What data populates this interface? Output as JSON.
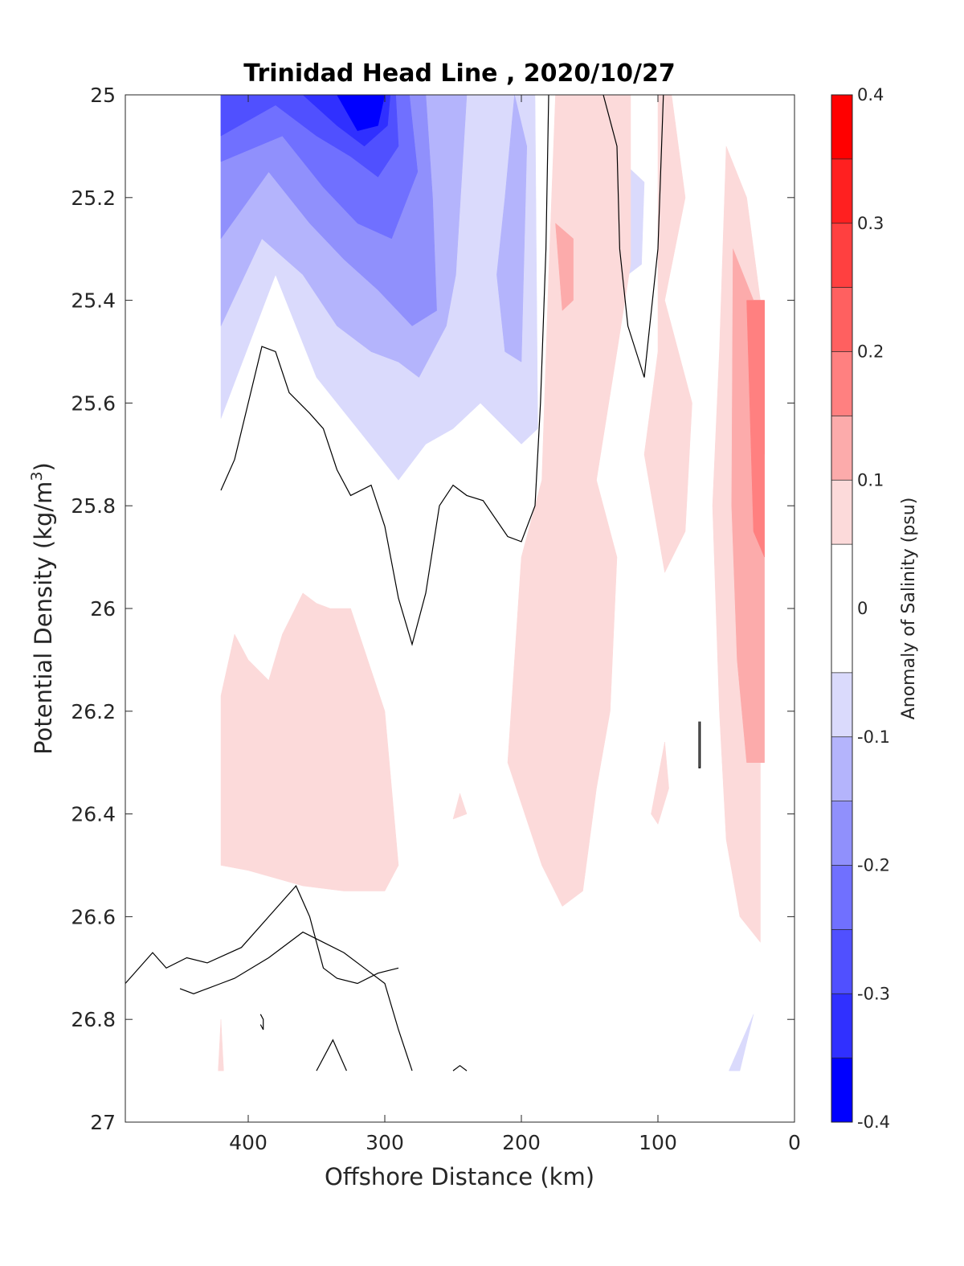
{
  "chart_data": {
    "type": "contour",
    "title": "Trinidad Head Line , 2020/10/27",
    "xlabel": "Offshore Distance (km)",
    "ylabel_main": "Potential Density (kg/m",
    "ylabel_sup": "3",
    "ylabel_close": ")",
    "xlim": [
      490,
      0
    ],
    "ylim": [
      25,
      27
    ],
    "y_reversed": true,
    "xticks": [
      400,
      300,
      200,
      100,
      0
    ],
    "yticks": [
      25,
      25.2,
      25.4,
      25.6,
      25.8,
      26,
      26.2,
      26.4,
      26.6,
      26.8,
      27
    ],
    "colorbar": {
      "label": "Anomaly of Salinity (psu)",
      "range": [
        -0.4,
        0.4
      ],
      "ticks": [
        0.4,
        0.3,
        0.2,
        0.1,
        0,
        -0.1,
        -0.2,
        -0.3,
        -0.4
      ],
      "levels": [
        {
          "from": 0.35,
          "to": 0.4,
          "color": "#ff0000"
        },
        {
          "from": 0.3,
          "to": 0.35,
          "color": "#ff2020"
        },
        {
          "from": 0.25,
          "to": 0.3,
          "color": "#ff4040"
        },
        {
          "from": 0.2,
          "to": 0.25,
          "color": "#ff6060"
        },
        {
          "from": 0.15,
          "to": 0.2,
          "color": "#ff8080"
        },
        {
          "from": 0.1,
          "to": 0.15,
          "color": "#fcabab"
        },
        {
          "from": 0.05,
          "to": 0.1,
          "color": "#fcdada"
        },
        {
          "from": -0.05,
          "to": 0.05,
          "color": "#ffffff"
        },
        {
          "from": -0.1,
          "to": -0.05,
          "color": "#dadafc"
        },
        {
          "from": -0.15,
          "to": -0.1,
          "color": "#b4b4fc"
        },
        {
          "from": -0.2,
          "to": -0.15,
          "color": "#9090fc"
        },
        {
          "from": -0.25,
          "to": -0.2,
          "color": "#7070ff"
        },
        {
          "from": -0.3,
          "to": -0.25,
          "color": "#5050ff"
        },
        {
          "from": -0.35,
          "to": -0.3,
          "color": "#3030ff"
        },
        {
          "from": -0.4,
          "to": -0.35,
          "color": "#0000ff"
        }
      ]
    },
    "filled_regions": [
      {
        "name": "fresh-core-01",
        "color": "#dadafc",
        "points": [
          [
            420,
            25.0
          ],
          [
            190,
            25.0
          ],
          [
            188,
            25.65
          ],
          [
            200,
            25.68
          ],
          [
            230,
            25.6
          ],
          [
            250,
            25.65
          ],
          [
            270,
            25.68
          ],
          [
            290,
            25.75
          ],
          [
            320,
            25.65
          ],
          [
            350,
            25.55
          ],
          [
            380,
            25.35
          ],
          [
            420,
            25.63
          ]
        ]
      },
      {
        "name": "fresh-core-02",
        "color": "#b4b4fc",
        "points": [
          [
            420,
            25.0
          ],
          [
            240,
            25.0
          ],
          [
            248,
            25.35
          ],
          [
            255,
            25.45
          ],
          [
            275,
            25.55
          ],
          [
            290,
            25.52
          ],
          [
            310,
            25.5
          ],
          [
            335,
            25.45
          ],
          [
            360,
            25.35
          ],
          [
            390,
            25.28
          ],
          [
            420,
            25.45
          ]
        ]
      },
      {
        "name": "fresh-core-02b",
        "color": "#b4b4fc",
        "points": [
          [
            205,
            25.0
          ],
          [
            196,
            25.1
          ],
          [
            200,
            25.52
          ],
          [
            212,
            25.5
          ],
          [
            218,
            25.35
          ],
          [
            212,
            25.2
          ]
        ]
      },
      {
        "name": "fresh-core-03",
        "color": "#9090fc",
        "points": [
          [
            420,
            25.0
          ],
          [
            270,
            25.0
          ],
          [
            265,
            25.2
          ],
          [
            262,
            25.42
          ],
          [
            280,
            25.45
          ],
          [
            305,
            25.38
          ],
          [
            330,
            25.32
          ],
          [
            355,
            25.25
          ],
          [
            385,
            25.15
          ],
          [
            420,
            25.28
          ]
        ]
      },
      {
        "name": "fresh-core-04",
        "color": "#7070ff",
        "points": [
          [
            420,
            25.0
          ],
          [
            282,
            25.0
          ],
          [
            276,
            25.15
          ],
          [
            295,
            25.28
          ],
          [
            320,
            25.25
          ],
          [
            345,
            25.18
          ],
          [
            375,
            25.08
          ],
          [
            420,
            25.13
          ]
        ]
      },
      {
        "name": "fresh-core-05",
        "color": "#5050ff",
        "points": [
          [
            420,
            25.0
          ],
          [
            292,
            25.0
          ],
          [
            290,
            25.1
          ],
          [
            305,
            25.16
          ],
          [
            325,
            25.12
          ],
          [
            350,
            25.08
          ],
          [
            380,
            25.02
          ],
          [
            420,
            25.08
          ]
        ]
      },
      {
        "name": "fresh-core-06",
        "color": "#3030ff",
        "points": [
          [
            360,
            25.0
          ],
          [
            296,
            25.0
          ],
          [
            298,
            25.06
          ],
          [
            315,
            25.1
          ],
          [
            335,
            25.06
          ]
        ]
      },
      {
        "name": "fresh-core-07",
        "color": "#0000ff",
        "points": [
          [
            335,
            25.0
          ],
          [
            300,
            25.0
          ],
          [
            305,
            25.06
          ],
          [
            320,
            25.07
          ]
        ]
      },
      {
        "name": "fresh-small-01",
        "color": "#dadafc",
        "points": [
          [
            122,
            25.14
          ],
          [
            110,
            25.17
          ],
          [
            112,
            25.33
          ],
          [
            122,
            25.35
          ]
        ]
      },
      {
        "name": "fresh-small-02",
        "color": "#dadafc",
        "points": [
          [
            30,
            26.79
          ],
          [
            48,
            26.9
          ],
          [
            40,
            26.9
          ]
        ]
      },
      {
        "name": "salty-01",
        "color": "#fcdada",
        "points": [
          [
            420,
            26.17
          ],
          [
            410,
            26.05
          ],
          [
            400,
            26.1
          ],
          [
            385,
            26.14
          ],
          [
            375,
            26.05
          ],
          [
            360,
            25.97
          ],
          [
            350,
            25.99
          ],
          [
            340,
            26.0
          ],
          [
            325,
            26.0
          ],
          [
            300,
            26.2
          ],
          [
            290,
            26.5
          ],
          [
            300,
            26.55
          ],
          [
            330,
            26.55
          ],
          [
            360,
            26.54
          ],
          [
            400,
            26.51
          ],
          [
            420,
            26.5
          ]
        ]
      },
      {
        "name": "salty-02",
        "color": "#fcdada",
        "points": [
          [
            175,
            25.0
          ],
          [
            120,
            25.0
          ],
          [
            120,
            25.33
          ],
          [
            130,
            25.5
          ],
          [
            145,
            25.75
          ],
          [
            130,
            25.9
          ],
          [
            135,
            26.2
          ],
          [
            145,
            26.35
          ],
          [
            155,
            26.55
          ],
          [
            170,
            26.58
          ],
          [
            185,
            26.5
          ],
          [
            210,
            26.3
          ],
          [
            200,
            25.9
          ],
          [
            185,
            25.75
          ],
          [
            180,
            25.35
          ]
        ]
      },
      {
        "name": "salty-03",
        "color": "#fcdada",
        "points": [
          [
            100,
            25.0
          ],
          [
            90,
            25.0
          ],
          [
            80,
            25.2
          ],
          [
            95,
            25.4
          ],
          [
            75,
            25.6
          ],
          [
            80,
            25.85
          ],
          [
            95,
            25.93
          ],
          [
            110,
            25.7
          ],
          [
            100,
            25.5
          ]
        ]
      },
      {
        "name": "salty-04",
        "color": "#fcdada",
        "points": [
          [
            50,
            25.1
          ],
          [
            35,
            25.2
          ],
          [
            25,
            25.4
          ],
          [
            25,
            26.65
          ],
          [
            40,
            26.6
          ],
          [
            50,
            26.45
          ],
          [
            55,
            26.2
          ],
          [
            60,
            25.8
          ],
          [
            55,
            25.5
          ]
        ]
      },
      {
        "name": "salty-05",
        "color": "#fcdada",
        "points": [
          [
            95,
            26.26
          ],
          [
            105,
            26.4
          ],
          [
            100,
            26.42
          ],
          [
            92,
            26.35
          ]
        ]
      },
      {
        "name": "salty-06",
        "color": "#fcdada",
        "points": [
          [
            420,
            26.8
          ],
          [
            422,
            26.9
          ],
          [
            418,
            26.9
          ]
        ]
      },
      {
        "name": "salty-07",
        "color": "#fcdada",
        "points": [
          [
            245,
            26.36
          ],
          [
            250,
            26.41
          ],
          [
            240,
            26.4
          ]
        ]
      },
      {
        "name": "salty-08",
        "color": "#fcabab",
        "points": [
          [
            45,
            25.3
          ],
          [
            30,
            25.4
          ],
          [
            22,
            25.4
          ],
          [
            22,
            26.3
          ],
          [
            35,
            26.3
          ],
          [
            42,
            26.1
          ],
          [
            46,
            25.8
          ]
        ]
      },
      {
        "name": "salty-09",
        "color": "#ff8080",
        "points": [
          [
            35,
            25.4
          ],
          [
            22,
            25.4
          ],
          [
            22,
            25.9
          ],
          [
            30,
            25.85
          ]
        ]
      },
      {
        "name": "salty-10",
        "color": "#fcabab",
        "points": [
          [
            175,
            25.25
          ],
          [
            162,
            25.28
          ],
          [
            162,
            25.4
          ],
          [
            170,
            25.42
          ]
        ]
      },
      {
        "name": "salty-11",
        "color": "#ff8080",
        "points": [
          [
            30,
            25.4
          ],
          [
            22,
            25.4
          ],
          [
            22,
            25.7
          ],
          [
            26,
            25.7
          ]
        ]
      }
    ],
    "contour_lines": [
      {
        "name": "zero-line-west",
        "points": [
          [
            420,
            25.77
          ],
          [
            410,
            25.71
          ],
          [
            400,
            25.6
          ],
          [
            390,
            25.49
          ],
          [
            380,
            25.5
          ],
          [
            370,
            25.58
          ],
          [
            355,
            25.62
          ],
          [
            345,
            25.65
          ],
          [
            335,
            25.73
          ],
          [
            325,
            25.78
          ],
          [
            310,
            25.76
          ],
          [
            300,
            25.84
          ],
          [
            290,
            25.98
          ],
          [
            280,
            26.07
          ],
          [
            270,
            25.97
          ],
          [
            260,
            25.8
          ],
          [
            250,
            25.76
          ],
          [
            240,
            25.78
          ],
          [
            228,
            25.79
          ],
          [
            210,
            25.86
          ],
          [
            200,
            25.87
          ],
          [
            190,
            25.8
          ],
          [
            186,
            25.6
          ],
          [
            182,
            25.3
          ],
          [
            180,
            25.0
          ]
        ]
      },
      {
        "name": "zero-line-mid",
        "points": [
          [
            140,
            25.0
          ],
          [
            130,
            25.1
          ],
          [
            128,
            25.3
          ],
          [
            122,
            25.45
          ],
          [
            110,
            25.55
          ],
          [
            100,
            25.3
          ],
          [
            96,
            25.0
          ]
        ]
      },
      {
        "name": "zero-line-deep",
        "points": [
          [
            280,
            26.9
          ],
          [
            290,
            26.82
          ],
          [
            300,
            26.73
          ],
          [
            315,
            26.7
          ],
          [
            330,
            26.67
          ],
          [
            345,
            26.65
          ],
          [
            360,
            26.63
          ],
          [
            385,
            26.68
          ],
          [
            410,
            26.72
          ],
          [
            420,
            26.73
          ],
          [
            430,
            26.74
          ],
          [
            440,
            26.75
          ],
          [
            450,
            26.74
          ]
        ]
      },
      {
        "name": "zero-line-deep-east",
        "points": [
          [
            490,
            26.73
          ],
          [
            470,
            26.67
          ],
          [
            460,
            26.7
          ],
          [
            445,
            26.68
          ],
          [
            430,
            26.69
          ],
          [
            405,
            26.66
          ],
          [
            385,
            26.6
          ],
          [
            365,
            26.54
          ],
          [
            355,
            26.6
          ],
          [
            345,
            26.7
          ],
          [
            335,
            26.72
          ],
          [
            320,
            26.73
          ],
          [
            305,
            26.71
          ],
          [
            290,
            26.7
          ]
        ]
      },
      {
        "name": "contour-bump-01",
        "points": [
          [
            350,
            26.9
          ],
          [
            338,
            26.84
          ],
          [
            328,
            26.9
          ]
        ]
      },
      {
        "name": "contour-bump-02",
        "points": [
          [
            250,
            26.9
          ],
          [
            245,
            26.89
          ],
          [
            240,
            26.9
          ]
        ]
      },
      {
        "name": "contour-small-01",
        "points": [
          [
            70,
            26.22
          ],
          [
            70,
            26.31
          ],
          [
            69,
            26.31
          ],
          [
            69,
            26.22
          ]
        ]
      },
      {
        "name": "contour-small-02",
        "points": [
          [
            391,
            26.79
          ],
          [
            389,
            26.8
          ],
          [
            389,
            26.82
          ],
          [
            391,
            26.81
          ]
        ]
      }
    ]
  }
}
